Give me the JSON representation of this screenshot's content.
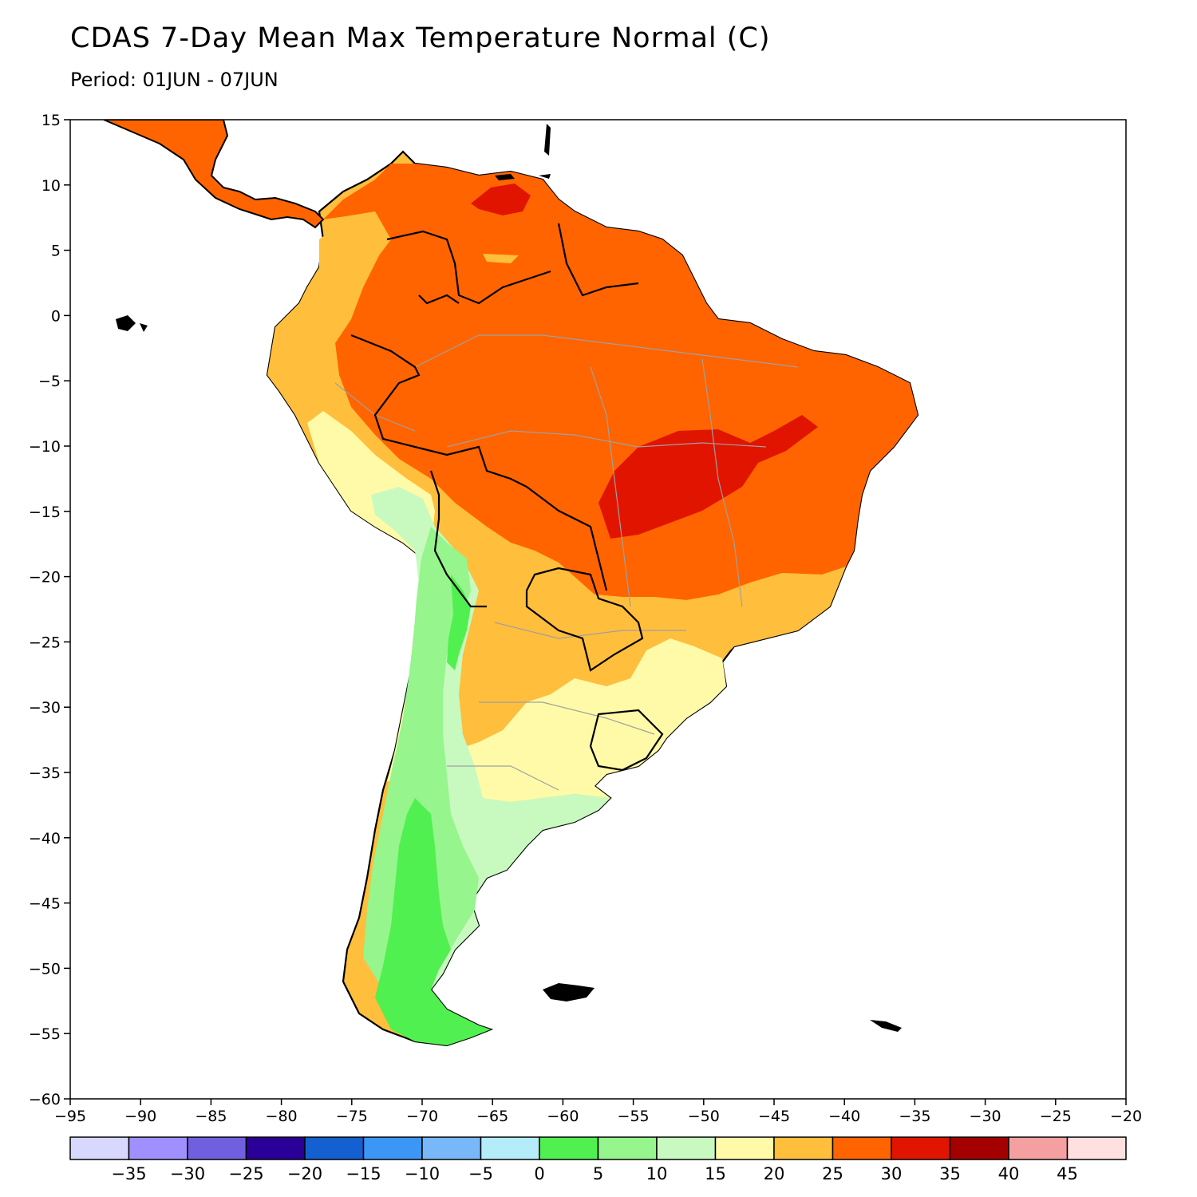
{
  "title": "CDAS 7-Day Mean Max Temperature Normal (C)",
  "subtitle": "Period: 01JUN - 07JUN",
  "map": {
    "lon_range": [
      -95,
      -20
    ],
    "lat_range": [
      -60,
      15
    ],
    "lon_ticks": [
      -95,
      -90,
      -85,
      -80,
      -75,
      -70,
      -65,
      -60,
      -55,
      -50,
      -45,
      -40,
      -35,
      -30,
      -25,
      -20
    ],
    "lat_ticks": [
      15,
      10,
      5,
      0,
      -5,
      -10,
      -15,
      -20,
      -25,
      -30,
      -35,
      -40,
      -45,
      -50,
      -55,
      -60
    ],
    "lon_tick_labels": [
      "−95",
      "−90",
      "−85",
      "−80",
      "−75",
      "−70",
      "−65",
      "−60",
      "−55",
      "−50",
      "−45",
      "−40",
      "−35",
      "−30",
      "−25",
      "−20"
    ],
    "lat_tick_labels": [
      "15",
      "10",
      "5",
      "0",
      "−5",
      "−10",
      "−15",
      "−20",
      "−25",
      "−30",
      "−35",
      "−40",
      "−45",
      "−50",
      "−55",
      "−60"
    ]
  },
  "legend": {
    "colors": [
      "#d8d8ff",
      "#a090ff",
      "#7060e0",
      "#2a0098",
      "#1460d0",
      "#3c96f5",
      "#78b8f8",
      "#b4ecfa",
      "#50f050",
      "#96f58c",
      "#c8fac0",
      "#fffaa8",
      "#ffbe3c",
      "#ff6400",
      "#e11400",
      "#a50000",
      "#f5a0a0",
      "#ffe0e0"
    ],
    "labels": [
      "−35",
      "−30",
      "−25",
      "−20",
      "−15",
      "−10",
      "−5",
      "0",
      "5",
      "10",
      "15",
      "20",
      "25",
      "30",
      "35",
      "40",
      "45"
    ]
  },
  "colors": {
    "land_outline": "#000000",
    "border_gray": "#a0a0a0"
  }
}
